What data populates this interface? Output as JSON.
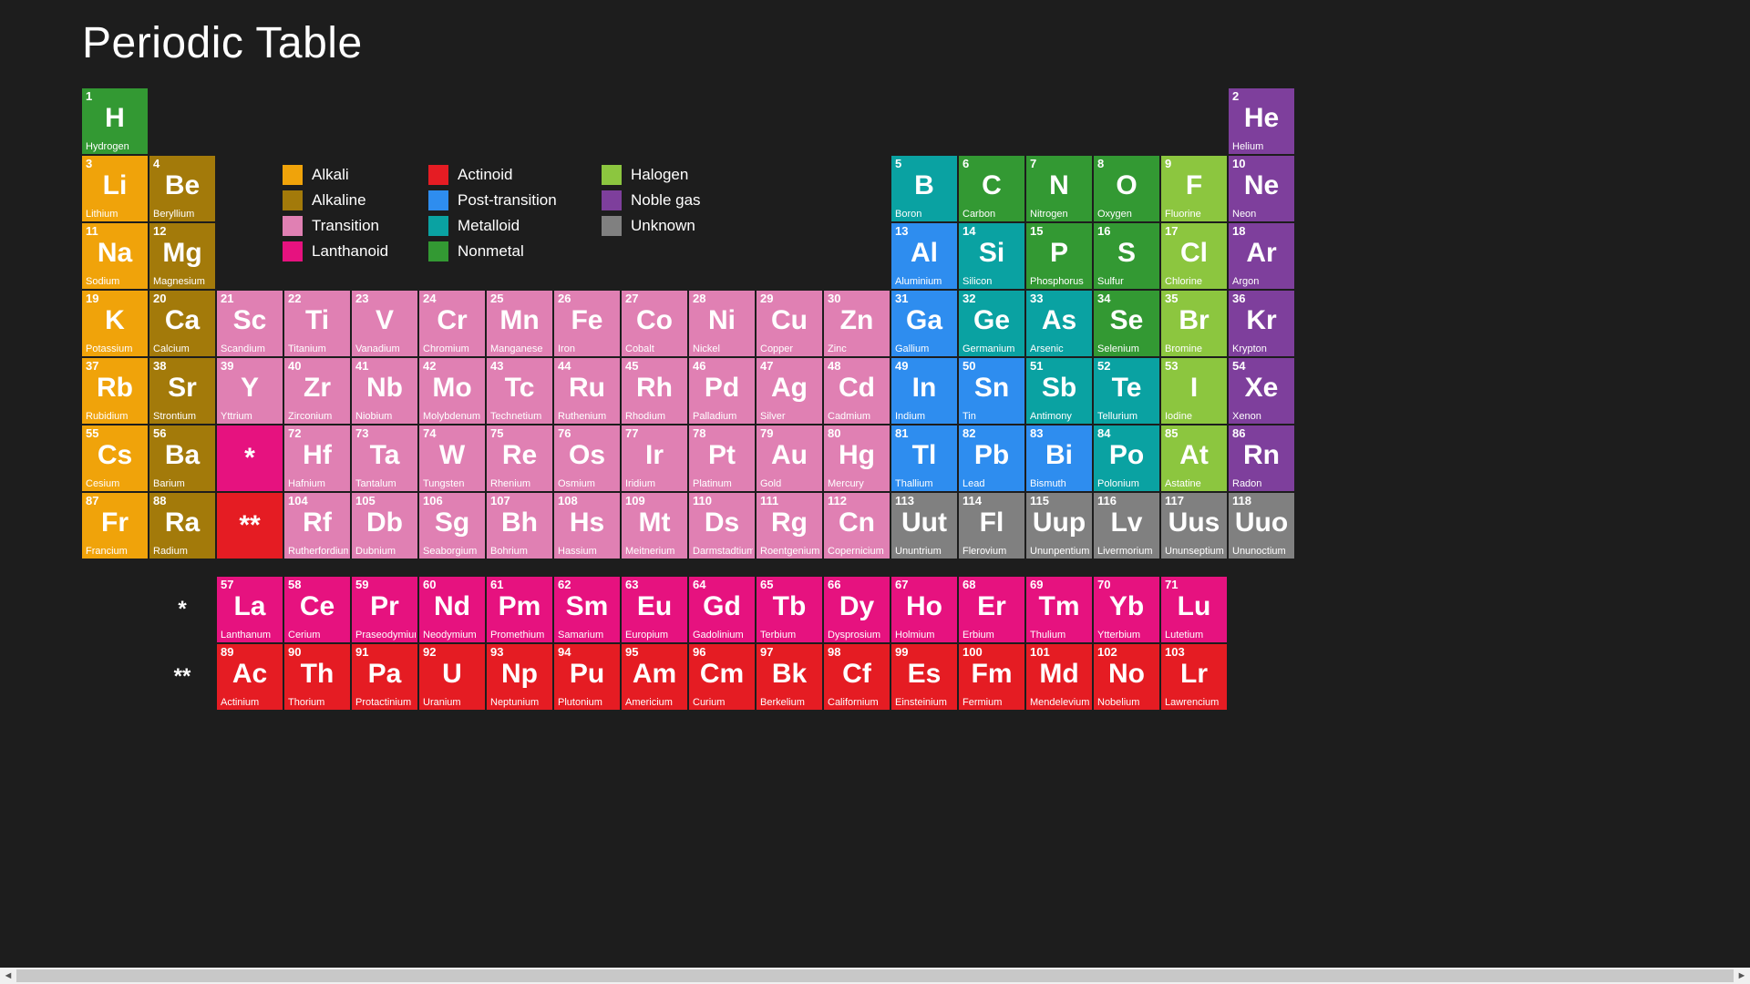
{
  "title": "Periodic Table",
  "colors": {
    "alkali": "#f0a30a",
    "alkaline": "#a37a0a",
    "transition": "#e080b3",
    "lanthanoid": "#e6127f",
    "actinoid": "#e51c23",
    "posttrans": "#2e8def",
    "metalloid": "#0aa2a2",
    "nonmetal": "#339933",
    "halogen": "#8cc63f",
    "noblegas": "#7e3f9c",
    "unknown": "#808080",
    "bg": "#1d1d1d"
  },
  "legend": [
    {
      "label": "Alkali",
      "cat": "alkali"
    },
    {
      "label": "Actinoid",
      "cat": "actinoid"
    },
    {
      "label": "Halogen",
      "cat": "halogen"
    },
    {
      "label": "Alkaline",
      "cat": "alkaline"
    },
    {
      "label": "Post-transition",
      "cat": "posttrans"
    },
    {
      "label": "Noble gas",
      "cat": "noblegas"
    },
    {
      "label": "Transition",
      "cat": "transition"
    },
    {
      "label": "Metalloid",
      "cat": "metalloid"
    },
    {
      "label": "Unknown",
      "cat": "unknown"
    },
    {
      "label": "Lanthanoid",
      "cat": "lanthanoid"
    },
    {
      "label": "Nonmetal",
      "cat": "nonmetal"
    }
  ],
  "elements": [
    {
      "n": 1,
      "s": "H",
      "nm": "Hydrogen",
      "c": "nonmetal",
      "col": 1,
      "row": 1
    },
    {
      "n": 2,
      "s": "He",
      "nm": "Helium",
      "c": "noblegas",
      "col": 18,
      "row": 1
    },
    {
      "n": 3,
      "s": "Li",
      "nm": "Lithium",
      "c": "alkali",
      "col": 1,
      "row": 2
    },
    {
      "n": 4,
      "s": "Be",
      "nm": "Beryllium",
      "c": "alkaline",
      "col": 2,
      "row": 2
    },
    {
      "n": 5,
      "s": "B",
      "nm": "Boron",
      "c": "metalloid",
      "col": 13,
      "row": 2
    },
    {
      "n": 6,
      "s": "C",
      "nm": "Carbon",
      "c": "nonmetal",
      "col": 14,
      "row": 2
    },
    {
      "n": 7,
      "s": "N",
      "nm": "Nitrogen",
      "c": "nonmetal",
      "col": 15,
      "row": 2
    },
    {
      "n": 8,
      "s": "O",
      "nm": "Oxygen",
      "c": "nonmetal",
      "col": 16,
      "row": 2
    },
    {
      "n": 9,
      "s": "F",
      "nm": "Fluorine",
      "c": "halogen",
      "col": 17,
      "row": 2
    },
    {
      "n": 10,
      "s": "Ne",
      "nm": "Neon",
      "c": "noblegas",
      "col": 18,
      "row": 2
    },
    {
      "n": 11,
      "s": "Na",
      "nm": "Sodium",
      "c": "alkali",
      "col": 1,
      "row": 3
    },
    {
      "n": 12,
      "s": "Mg",
      "nm": "Magnesium",
      "c": "alkaline",
      "col": 2,
      "row": 3
    },
    {
      "n": 13,
      "s": "Al",
      "nm": "Aluminium",
      "c": "posttrans",
      "col": 13,
      "row": 3
    },
    {
      "n": 14,
      "s": "Si",
      "nm": "Silicon",
      "c": "metalloid",
      "col": 14,
      "row": 3
    },
    {
      "n": 15,
      "s": "P",
      "nm": "Phosphorus",
      "c": "nonmetal",
      "col": 15,
      "row": 3
    },
    {
      "n": 16,
      "s": "S",
      "nm": "Sulfur",
      "c": "nonmetal",
      "col": 16,
      "row": 3
    },
    {
      "n": 17,
      "s": "Cl",
      "nm": "Chlorine",
      "c": "halogen",
      "col": 17,
      "row": 3
    },
    {
      "n": 18,
      "s": "Ar",
      "nm": "Argon",
      "c": "noblegas",
      "col": 18,
      "row": 3
    },
    {
      "n": 19,
      "s": "K",
      "nm": "Potassium",
      "c": "alkali",
      "col": 1,
      "row": 4
    },
    {
      "n": 20,
      "s": "Ca",
      "nm": "Calcium",
      "c": "alkaline",
      "col": 2,
      "row": 4
    },
    {
      "n": 21,
      "s": "Sc",
      "nm": "Scandium",
      "c": "transition",
      "col": 3,
      "row": 4
    },
    {
      "n": 22,
      "s": "Ti",
      "nm": "Titanium",
      "c": "transition",
      "col": 4,
      "row": 4
    },
    {
      "n": 23,
      "s": "V",
      "nm": "Vanadium",
      "c": "transition",
      "col": 5,
      "row": 4
    },
    {
      "n": 24,
      "s": "Cr",
      "nm": "Chromium",
      "c": "transition",
      "col": 6,
      "row": 4
    },
    {
      "n": 25,
      "s": "Mn",
      "nm": "Manganese",
      "c": "transition",
      "col": 7,
      "row": 4
    },
    {
      "n": 26,
      "s": "Fe",
      "nm": "Iron",
      "c": "transition",
      "col": 8,
      "row": 4
    },
    {
      "n": 27,
      "s": "Co",
      "nm": "Cobalt",
      "c": "transition",
      "col": 9,
      "row": 4
    },
    {
      "n": 28,
      "s": "Ni",
      "nm": "Nickel",
      "c": "transition",
      "col": 10,
      "row": 4
    },
    {
      "n": 29,
      "s": "Cu",
      "nm": "Copper",
      "c": "transition",
      "col": 11,
      "row": 4
    },
    {
      "n": 30,
      "s": "Zn",
      "nm": "Zinc",
      "c": "transition",
      "col": 12,
      "row": 4
    },
    {
      "n": 31,
      "s": "Ga",
      "nm": "Gallium",
      "c": "posttrans",
      "col": 13,
      "row": 4
    },
    {
      "n": 32,
      "s": "Ge",
      "nm": "Germanium",
      "c": "metalloid",
      "col": 14,
      "row": 4
    },
    {
      "n": 33,
      "s": "As",
      "nm": "Arsenic",
      "c": "metalloid",
      "col": 15,
      "row": 4
    },
    {
      "n": 34,
      "s": "Se",
      "nm": "Selenium",
      "c": "nonmetal",
      "col": 16,
      "row": 4
    },
    {
      "n": 35,
      "s": "Br",
      "nm": "Bromine",
      "c": "halogen",
      "col": 17,
      "row": 4
    },
    {
      "n": 36,
      "s": "Kr",
      "nm": "Krypton",
      "c": "noblegas",
      "col": 18,
      "row": 4
    },
    {
      "n": 37,
      "s": "Rb",
      "nm": "Rubidium",
      "c": "alkali",
      "col": 1,
      "row": 5
    },
    {
      "n": 38,
      "s": "Sr",
      "nm": "Strontium",
      "c": "alkaline",
      "col": 2,
      "row": 5
    },
    {
      "n": 39,
      "s": "Y",
      "nm": "Yttrium",
      "c": "transition",
      "col": 3,
      "row": 5
    },
    {
      "n": 40,
      "s": "Zr",
      "nm": "Zirconium",
      "c": "transition",
      "col": 4,
      "row": 5
    },
    {
      "n": 41,
      "s": "Nb",
      "nm": "Niobium",
      "c": "transition",
      "col": 5,
      "row": 5
    },
    {
      "n": 42,
      "s": "Mo",
      "nm": "Molybdenum",
      "c": "transition",
      "col": 6,
      "row": 5
    },
    {
      "n": 43,
      "s": "Tc",
      "nm": "Technetium",
      "c": "transition",
      "col": 7,
      "row": 5
    },
    {
      "n": 44,
      "s": "Ru",
      "nm": "Ruthenium",
      "c": "transition",
      "col": 8,
      "row": 5
    },
    {
      "n": 45,
      "s": "Rh",
      "nm": "Rhodium",
      "c": "transition",
      "col": 9,
      "row": 5
    },
    {
      "n": 46,
      "s": "Pd",
      "nm": "Palladium",
      "c": "transition",
      "col": 10,
      "row": 5
    },
    {
      "n": 47,
      "s": "Ag",
      "nm": "Silver",
      "c": "transition",
      "col": 11,
      "row": 5
    },
    {
      "n": 48,
      "s": "Cd",
      "nm": "Cadmium",
      "c": "transition",
      "col": 12,
      "row": 5
    },
    {
      "n": 49,
      "s": "In",
      "nm": "Indium",
      "c": "posttrans",
      "col": 13,
      "row": 5
    },
    {
      "n": 50,
      "s": "Sn",
      "nm": "Tin",
      "c": "posttrans",
      "col": 14,
      "row": 5
    },
    {
      "n": 51,
      "s": "Sb",
      "nm": "Antimony",
      "c": "metalloid",
      "col": 15,
      "row": 5
    },
    {
      "n": 52,
      "s": "Te",
      "nm": "Tellurium",
      "c": "metalloid",
      "col": 16,
      "row": 5
    },
    {
      "n": 53,
      "s": "I",
      "nm": "Iodine",
      "c": "halogen",
      "col": 17,
      "row": 5
    },
    {
      "n": 54,
      "s": "Xe",
      "nm": "Xenon",
      "c": "noblegas",
      "col": 18,
      "row": 5
    },
    {
      "n": 55,
      "s": "Cs",
      "nm": "Cesium",
      "c": "alkali",
      "col": 1,
      "row": 6
    },
    {
      "n": 56,
      "s": "Ba",
      "nm": "Barium",
      "c": "alkaline",
      "col": 2,
      "row": 6
    },
    {
      "n": 0,
      "s": "*",
      "nm": "",
      "c": "lanthanoid",
      "col": 3,
      "row": 6,
      "ph": true
    },
    {
      "n": 72,
      "s": "Hf",
      "nm": "Hafnium",
      "c": "transition",
      "col": 4,
      "row": 6
    },
    {
      "n": 73,
      "s": "Ta",
      "nm": "Tantalum",
      "c": "transition",
      "col": 5,
      "row": 6
    },
    {
      "n": 74,
      "s": "W",
      "nm": "Tungsten",
      "c": "transition",
      "col": 6,
      "row": 6
    },
    {
      "n": 75,
      "s": "Re",
      "nm": "Rhenium",
      "c": "transition",
      "col": 7,
      "row": 6
    },
    {
      "n": 76,
      "s": "Os",
      "nm": "Osmium",
      "c": "transition",
      "col": 8,
      "row": 6
    },
    {
      "n": 77,
      "s": "Ir",
      "nm": "Iridium",
      "c": "transition",
      "col": 9,
      "row": 6
    },
    {
      "n": 78,
      "s": "Pt",
      "nm": "Platinum",
      "c": "transition",
      "col": 10,
      "row": 6
    },
    {
      "n": 79,
      "s": "Au",
      "nm": "Gold",
      "c": "transition",
      "col": 11,
      "row": 6
    },
    {
      "n": 80,
      "s": "Hg",
      "nm": "Mercury",
      "c": "transition",
      "col": 12,
      "row": 6
    },
    {
      "n": 81,
      "s": "Tl",
      "nm": "Thallium",
      "c": "posttrans",
      "col": 13,
      "row": 6
    },
    {
      "n": 82,
      "s": "Pb",
      "nm": "Lead",
      "c": "posttrans",
      "col": 14,
      "row": 6
    },
    {
      "n": 83,
      "s": "Bi",
      "nm": "Bismuth",
      "c": "posttrans",
      "col": 15,
      "row": 6
    },
    {
      "n": 84,
      "s": "Po",
      "nm": "Polonium",
      "c": "metalloid",
      "col": 16,
      "row": 6
    },
    {
      "n": 85,
      "s": "At",
      "nm": "Astatine",
      "c": "halogen",
      "col": 17,
      "row": 6
    },
    {
      "n": 86,
      "s": "Rn",
      "nm": "Radon",
      "c": "noblegas",
      "col": 18,
      "row": 6
    },
    {
      "n": 87,
      "s": "Fr",
      "nm": "Francium",
      "c": "alkali",
      "col": 1,
      "row": 7
    },
    {
      "n": 88,
      "s": "Ra",
      "nm": "Radium",
      "c": "alkaline",
      "col": 2,
      "row": 7
    },
    {
      "n": 0,
      "s": "**",
      "nm": "",
      "c": "actinoid",
      "col": 3,
      "row": 7,
      "ph": true
    },
    {
      "n": 104,
      "s": "Rf",
      "nm": "Rutherfordium",
      "c": "transition",
      "col": 4,
      "row": 7
    },
    {
      "n": 105,
      "s": "Db",
      "nm": "Dubnium",
      "c": "transition",
      "col": 5,
      "row": 7
    },
    {
      "n": 106,
      "s": "Sg",
      "nm": "Seaborgium",
      "c": "transition",
      "col": 6,
      "row": 7
    },
    {
      "n": 107,
      "s": "Bh",
      "nm": "Bohrium",
      "c": "transition",
      "col": 7,
      "row": 7
    },
    {
      "n": 108,
      "s": "Hs",
      "nm": "Hassium",
      "c": "transition",
      "col": 8,
      "row": 7
    },
    {
      "n": 109,
      "s": "Mt",
      "nm": "Meitnerium",
      "c": "transition",
      "col": 9,
      "row": 7
    },
    {
      "n": 110,
      "s": "Ds",
      "nm": "Darmstadtium",
      "c": "transition",
      "col": 10,
      "row": 7
    },
    {
      "n": 111,
      "s": "Rg",
      "nm": "Roentgenium",
      "c": "transition",
      "col": 11,
      "row": 7
    },
    {
      "n": 112,
      "s": "Cn",
      "nm": "Copernicium",
      "c": "transition",
      "col": 12,
      "row": 7
    },
    {
      "n": 113,
      "s": "Uut",
      "nm": "Ununtrium",
      "c": "unknown",
      "col": 13,
      "row": 7
    },
    {
      "n": 114,
      "s": "Fl",
      "nm": "Flerovium",
      "c": "unknown",
      "col": 14,
      "row": 7
    },
    {
      "n": 115,
      "s": "Uup",
      "nm": "Ununpentium",
      "c": "unknown",
      "col": 15,
      "row": 7
    },
    {
      "n": 116,
      "s": "Lv",
      "nm": "Livermorium",
      "c": "unknown",
      "col": 16,
      "row": 7
    },
    {
      "n": 117,
      "s": "Uus",
      "nm": "Ununseptium",
      "c": "unknown",
      "col": 17,
      "row": 7
    },
    {
      "n": 118,
      "s": "Uuo",
      "nm": "Ununoctium",
      "c": "unknown",
      "col": 18,
      "row": 7
    }
  ],
  "lanthanoids": [
    {
      "n": 57,
      "s": "La",
      "nm": "Lanthanum"
    },
    {
      "n": 58,
      "s": "Ce",
      "nm": "Cerium"
    },
    {
      "n": 59,
      "s": "Pr",
      "nm": "Praseodymium"
    },
    {
      "n": 60,
      "s": "Nd",
      "nm": "Neodymium"
    },
    {
      "n": 61,
      "s": "Pm",
      "nm": "Promethium"
    },
    {
      "n": 62,
      "s": "Sm",
      "nm": "Samarium"
    },
    {
      "n": 63,
      "s": "Eu",
      "nm": "Europium"
    },
    {
      "n": 64,
      "s": "Gd",
      "nm": "Gadolinium"
    },
    {
      "n": 65,
      "s": "Tb",
      "nm": "Terbium"
    },
    {
      "n": 66,
      "s": "Dy",
      "nm": "Dysprosium"
    },
    {
      "n": 67,
      "s": "Ho",
      "nm": "Holmium"
    },
    {
      "n": 68,
      "s": "Er",
      "nm": "Erbium"
    },
    {
      "n": 69,
      "s": "Tm",
      "nm": "Thulium"
    },
    {
      "n": 70,
      "s": "Yb",
      "nm": "Ytterbium"
    },
    {
      "n": 71,
      "s": "Lu",
      "nm": "Lutetium"
    }
  ],
  "actinoids": [
    {
      "n": 89,
      "s": "Ac",
      "nm": "Actinium"
    },
    {
      "n": 90,
      "s": "Th",
      "nm": "Thorium"
    },
    {
      "n": 91,
      "s": "Pa",
      "nm": "Protactinium"
    },
    {
      "n": 92,
      "s": "U",
      "nm": "Uranium"
    },
    {
      "n": 93,
      "s": "Np",
      "nm": "Neptunium"
    },
    {
      "n": 94,
      "s": "Pu",
      "nm": "Plutonium"
    },
    {
      "n": 95,
      "s": "Am",
      "nm": "Americium"
    },
    {
      "n": 96,
      "s": "Cm",
      "nm": "Curium"
    },
    {
      "n": 97,
      "s": "Bk",
      "nm": "Berkelium"
    },
    {
      "n": 98,
      "s": "Cf",
      "nm": "Californium"
    },
    {
      "n": 99,
      "s": "Es",
      "nm": "Einsteinium"
    },
    {
      "n": 100,
      "s": "Fm",
      "nm": "Fermium"
    },
    {
      "n": 101,
      "s": "Md",
      "nm": "Mendelevium"
    },
    {
      "n": 102,
      "s": "No",
      "nm": "Nobelium"
    },
    {
      "n": 103,
      "s": "Lr",
      "nm": "Lawrencium"
    }
  ],
  "rowlabels": {
    "lan": "*",
    "act": "**"
  }
}
